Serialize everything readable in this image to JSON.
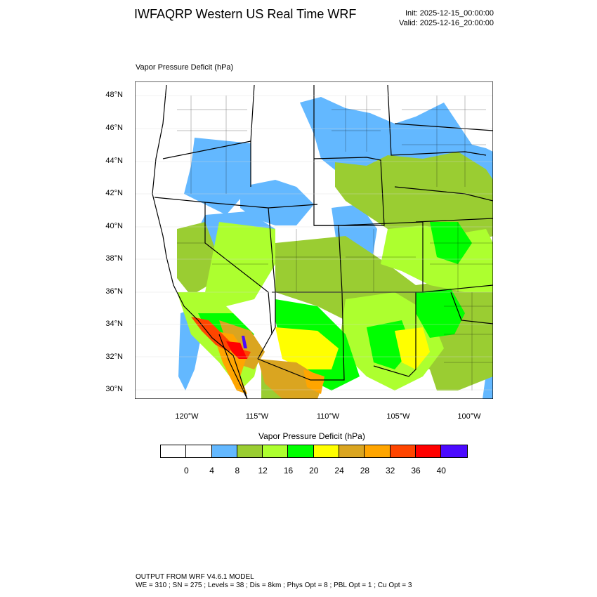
{
  "header": {
    "title": "IWFAQRP Western US Real Time WRF",
    "init": "Init: 2025-12-15_00:00:00",
    "valid": "Valid: 2025-12-16_20:00:00"
  },
  "map": {
    "field_label": "Vapor Pressure Deficit   (hPa)",
    "lat_labels": [
      "48°N",
      "46°N",
      "44°N",
      "42°N",
      "40°N",
      "38°N",
      "36°N",
      "34°N",
      "32°N",
      "30°N"
    ],
    "lon_labels": [
      "120°W",
      "115°W",
      "110°W",
      "105°W",
      "100°W"
    ],
    "colors": {
      "white": "#ffffff",
      "blue": "#63b8ff",
      "olive": "#9acd32",
      "lime": "#adff2f",
      "green": "#00ff00",
      "yellow": "#ffff00",
      "tan": "#daa520",
      "orange": "#ffa500",
      "red_orange": "#ff4500",
      "red": "#ff0000",
      "purple": "#4b0aff"
    }
  },
  "colorbar": {
    "title": "Vapor Pressure Deficit  (hPa)",
    "colors": [
      "#ffffff",
      "#ffffff",
      "#63b8ff",
      "#9acd32",
      "#adff2f",
      "#00ff00",
      "#ffff00",
      "#daa520",
      "#ffa500",
      "#ff4500",
      "#ff0000",
      "#4b0aff"
    ],
    "ticks": [
      "0",
      "4",
      "8",
      "12",
      "16",
      "20",
      "24",
      "28",
      "32",
      "36",
      "40"
    ]
  },
  "footer": {
    "model": "OUTPUT FROM WRF V4.6.1 MODEL",
    "params": "WE = 310 ; SN = 275 ; Levels = 38 ; Dis = 8km ; Phys Opt = 8 ; PBL Opt = 1 ; Cu Opt = 3"
  }
}
